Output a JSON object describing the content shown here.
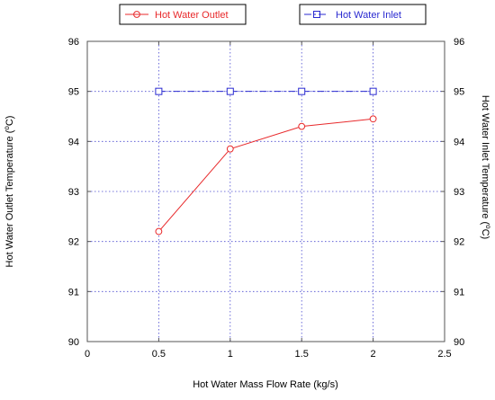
{
  "chart_data": {
    "type": "line",
    "xlabel": "Hot Water Mass Flow Rate (kg/s)",
    "ylabel_left": "Hot  Water Outlet Temperature (",
    "ylabel_right": "Hot  Water Inlet Temperature (",
    "unit_degree": "o",
    "unit_letter": "C)",
    "xlim": [
      0,
      2.5
    ],
    "ylim": [
      90,
      96
    ],
    "xticks": [
      "0",
      "0.5",
      "1",
      "1.5",
      "2",
      "2.5"
    ],
    "yticks": [
      "90",
      "91",
      "92",
      "93",
      "94",
      "95",
      "96"
    ],
    "grid": true,
    "legend_placement": "top",
    "series": [
      {
        "name": "Hot Water Outlet",
        "axis": "left",
        "color": "#e8292b",
        "marker": "circle",
        "line_style": "solid",
        "x": [
          0.5,
          1,
          1.5,
          2
        ],
        "y": [
          92.2,
          93.85,
          94.3,
          94.45
        ]
      },
      {
        "name": "Hot Water Inlet",
        "axis": "right",
        "color": "#2a2ad0",
        "marker": "square",
        "line_style": "dash-dot",
        "x": [
          0.5,
          1,
          1.5,
          2
        ],
        "y": [
          95,
          95,
          95,
          95
        ]
      }
    ]
  }
}
